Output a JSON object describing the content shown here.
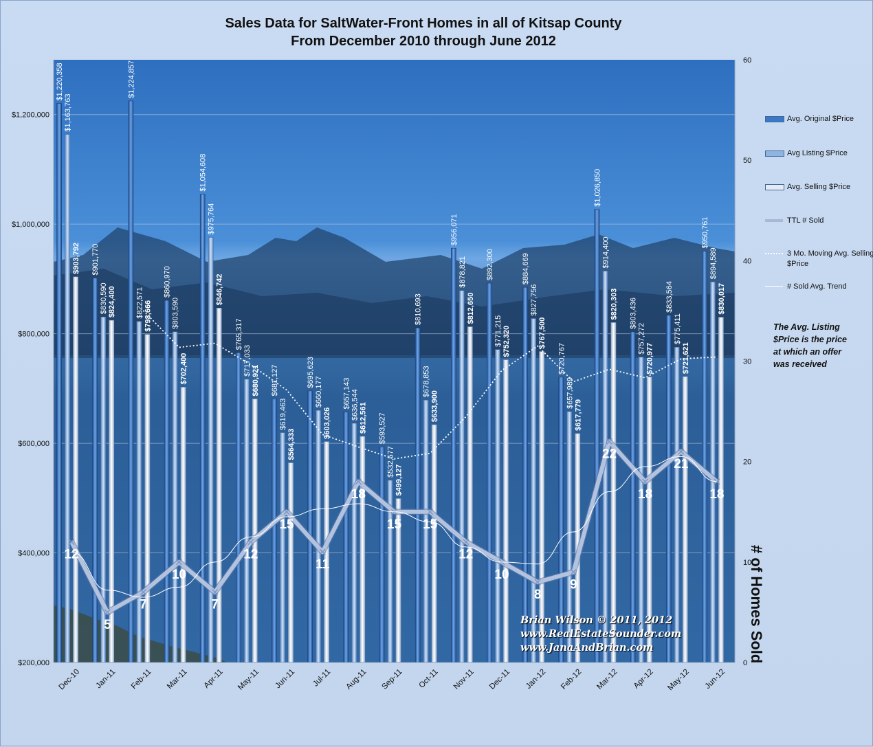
{
  "title_line1": "Sales Data for SaltWater-Front Homes in all of Kitsap County",
  "title_line2": "From December 2010 through June 2012",
  "note": "The Avg. Listing $Price is the price at which an offer was received",
  "y2_label": "# of Homes Sold",
  "credit": [
    "Brian Wilson  © 2011, 2012",
    "www.RealEstateSounder.com",
    "www.JanaAndBrian.com"
  ],
  "legend": [
    {
      "label": "Avg. Original $Price",
      "color": "#3a78c8"
    },
    {
      "label": "Avg Listing $Price",
      "color": "#8fb4e0"
    },
    {
      "label": "Avg. Selling $Price",
      "color": "#e4ebf5"
    },
    {
      "label": "TTL # Sold",
      "color": "#a7b8d8"
    },
    {
      "label": "3 Mo. Moving Avg. Selling $Price",
      "color": "#ffffff"
    },
    {
      "label": "# Sold Avg. Trend",
      "color": "#ffffff"
    }
  ],
  "chart_data": {
    "type": "bar",
    "title": "Sales Data for SaltWater-Front Homes in all of Kitsap County From December 2010 through June 2012",
    "categories": [
      "Dec-10",
      "Jan-11",
      "Feb-11",
      "Mar-11",
      "Apr-11",
      "May-11",
      "Jun-11",
      "Jul-11",
      "Aug-11",
      "Sep-11",
      "Oct-11",
      "Nov-11",
      "Dec-11",
      "Jan-12",
      "Feb-12",
      "Mar-12",
      "Apr-12",
      "May-12",
      "Jun-12"
    ],
    "y_ticks": [
      "$200,000",
      "$400,000",
      "$600,000",
      "$800,000",
      "$1,000,000",
      "$1,200,000"
    ],
    "y2_ticks": [
      "0",
      "10",
      "20",
      "30",
      "40",
      "50",
      "60"
    ],
    "ylim": [
      200000,
      1300000
    ],
    "y2lim": [
      0,
      60
    ],
    "series": [
      {
        "name": "Avg. Original $Price",
        "values": [
          1220358,
          901770,
          1224857,
          860970,
          1054608,
          765317,
          681127,
          695623,
          657143,
          593527,
          810693,
          956071,
          892300,
          884669,
          720767,
          1026850,
          803436,
          833564,
          950761
        ],
        "labels": [
          "$1,220,358",
          "$901,770",
          "$1,224,857",
          "$860,970",
          "$1,054,608",
          "$765,317",
          "$681,127",
          "$695,623",
          "$657,143",
          "$593,527",
          "$810,693",
          "$956,071",
          "$892,300",
          "$884,669",
          "$720,767",
          "$1,026,850",
          "$803,436",
          "$833,564",
          "$950,761"
        ]
      },
      {
        "name": "Avg Listing $Price",
        "values": [
          1163763,
          830590,
          822571,
          803590,
          975764,
          717033,
          619463,
          660177,
          636544,
          532577,
          678853,
          878821,
          771215,
          827756,
          657989,
          914400,
          757272,
          775411,
          894589
        ],
        "labels": [
          "$1,163,763",
          "$830,590",
          "$822,571",
          "$803,590",
          "$975,764",
          "$717,033",
          "$619,463",
          "$660,177",
          "$636,544",
          "$532,577",
          "$678,853",
          "$878,821",
          "$771,215",
          "$827,756",
          "$657,989",
          "$914,400",
          "$757,272",
          "$775,411",
          "$894,589"
        ]
      },
      {
        "name": "Avg. Selling $Price",
        "values": [
          903792,
          824400,
          798666,
          702400,
          846742,
          680921,
          564333,
          603026,
          612561,
          499127,
          633900,
          812650,
          752320,
          767500,
          617779,
          820303,
          720977,
          721621,
          830017
        ],
        "labels": [
          "$903,792",
          "$824,400",
          "$798,666",
          "$702,400",
          "$846,742",
          "$680,921",
          "$564,333",
          "$603,026",
          "$612,561",
          "$499,127",
          "$633,900",
          "$812,650",
          "$752,320",
          "$767,500",
          "$617,779",
          "$820,303",
          "$720,977",
          "$721,621",
          "$830,017"
        ]
      },
      {
        "name": "TTL # Sold",
        "axis": "right",
        "values": [
          12,
          5,
          7,
          10,
          7,
          12,
          15,
          11,
          18,
          15,
          15,
          12,
          10,
          8,
          9,
          22,
          18,
          21,
          18
        ]
      },
      {
        "name": "3 Mo. Moving Avg. Selling $Price",
        "values": [
          null,
          null,
          842286,
          775155,
          782603,
          743354,
          697332,
          616093,
          593307,
          571571,
          581863,
          648559,
          732957,
          777490,
          712533,
          735194,
          719686,
          754300,
          757538
        ]
      },
      {
        "name": "# Sold Avg. Trend",
        "axis": "right",
        "values": [
          11,
          7.2,
          6.5,
          7.5,
          10,
          12.5,
          14.5,
          15.3,
          15.8,
          15,
          14,
          11.5,
          10,
          9.8,
          13,
          17,
          19.5,
          20.5,
          18
        ]
      }
    ]
  }
}
